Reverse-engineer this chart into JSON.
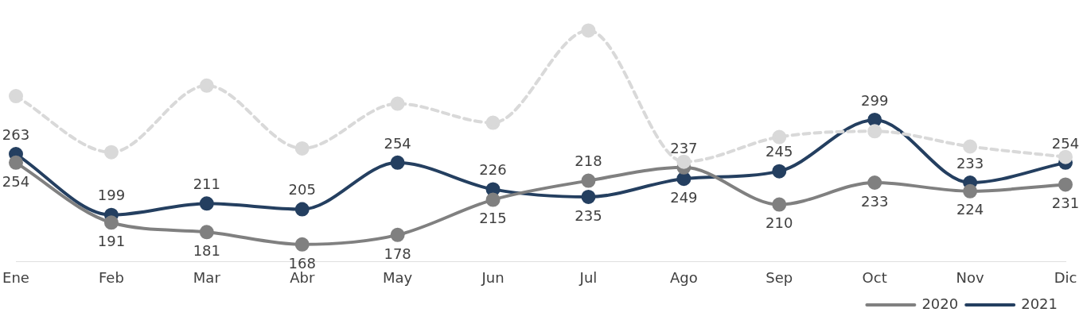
{
  "chart_data": {
    "type": "line",
    "categories": [
      "Ene",
      "Feb",
      "Mar",
      "Abr",
      "May",
      "Jun",
      "Jul",
      "Ago",
      "Sep",
      "Oct",
      "Nov",
      "Dic"
    ],
    "series": [
      {
        "color": "#d9d9d9",
        "line_style": "dashed",
        "values": [
          324,
          265,
          335,
          269,
          316,
          296,
          393,
          255,
          281,
          287,
          271,
          260
        ]
      },
      {
        "name": "2020",
        "color": "#808080",
        "values": [
          254,
          191,
          181,
          168,
          178,
          215,
          235,
          249,
          210,
          233,
          224,
          231
        ],
        "value_labels": [
          "254",
          "191",
          "181",
          "168",
          "178",
          "215",
          "235",
          "249",
          "210",
          "233",
          "224",
          "231"
        ]
      },
      {
        "name": "2021",
        "color": "#243f60",
        "values": [
          263,
          199,
          211,
          205,
          254,
          226,
          218,
          237,
          245,
          299,
          233,
          254
        ],
        "value_labels": [
          "263",
          "199",
          "211",
          "205",
          "254",
          "226",
          "218",
          "237",
          "245",
          "299",
          "233",
          "254"
        ]
      }
    ],
    "relative": false,
    "marker": "circle",
    "line_style": "solid",
    "grid": false,
    "legend": "bottom right"
  }
}
